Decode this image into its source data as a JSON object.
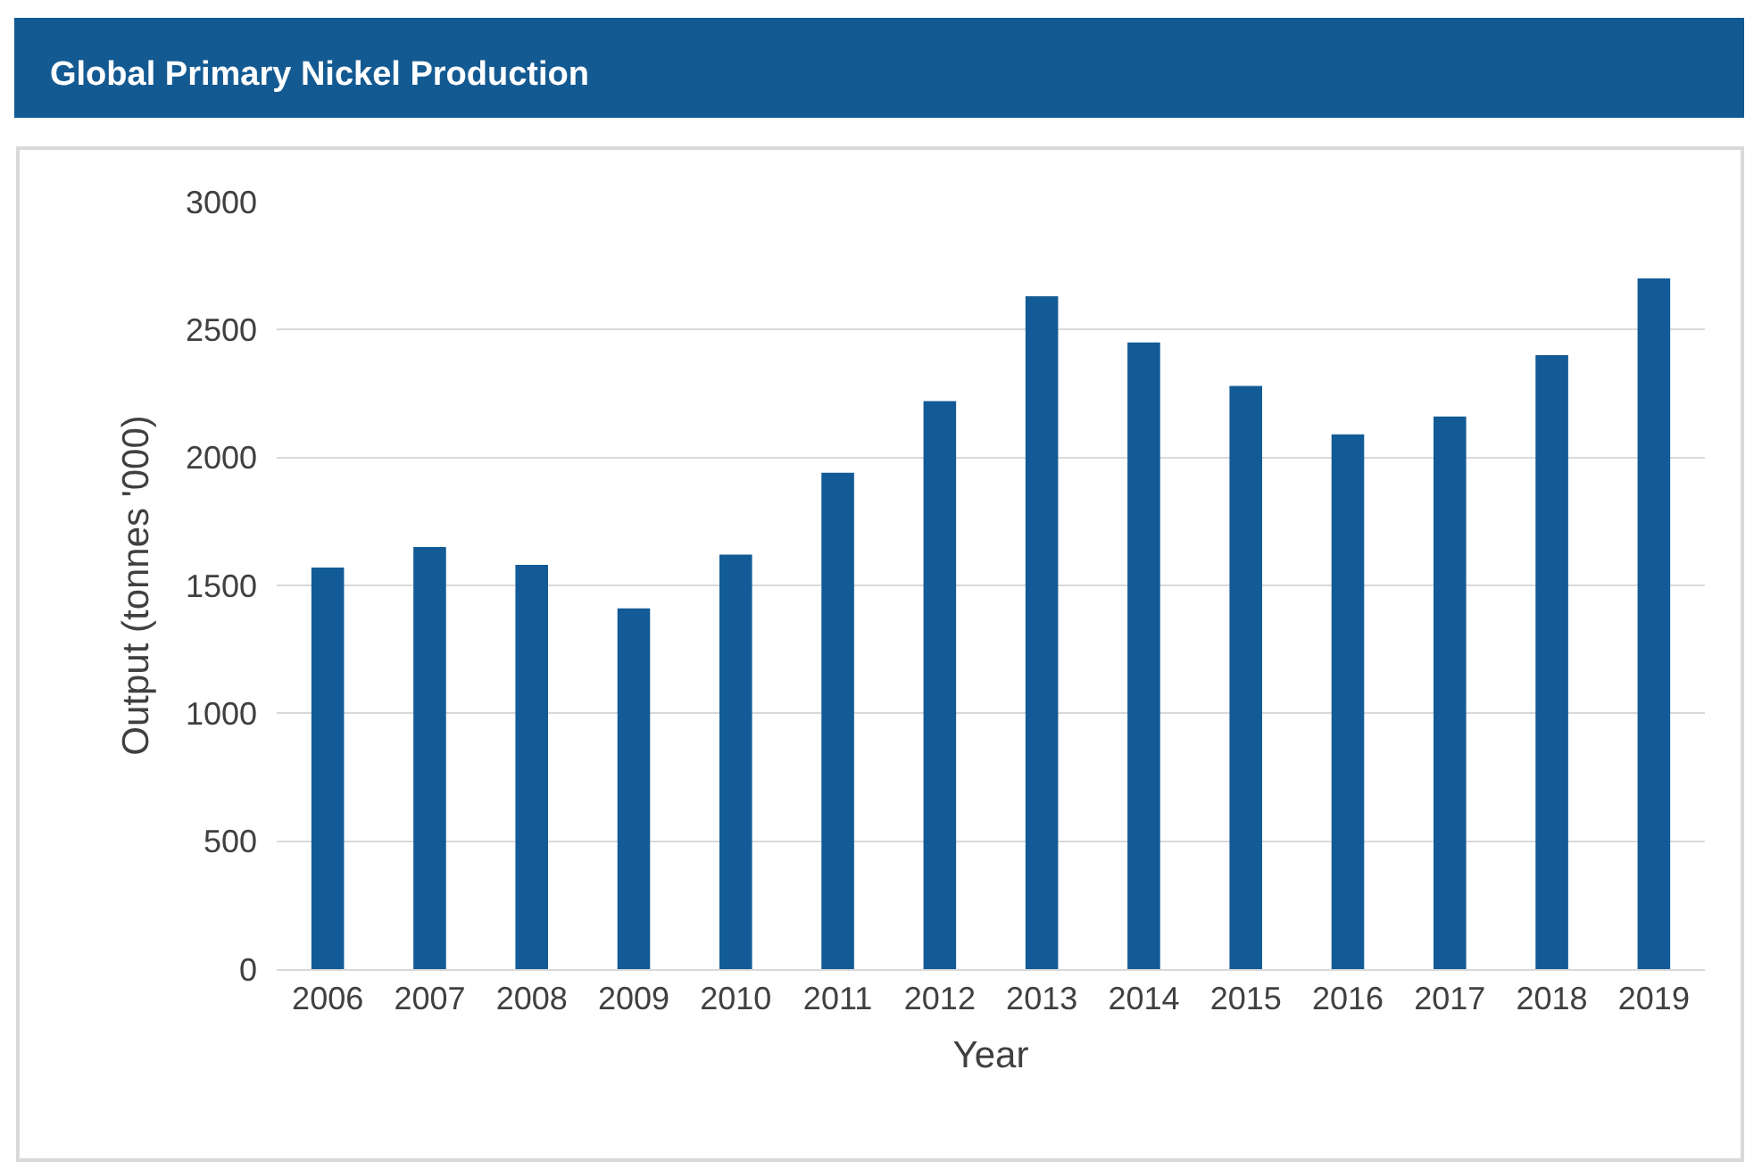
{
  "chart_data": {
    "type": "bar",
    "title": "Global Primary Nickel Production",
    "xlabel": "Year",
    "ylabel": "Output (tonnes '000)",
    "categories": [
      "2006",
      "2007",
      "2008",
      "2009",
      "2010",
      "2011",
      "2012",
      "2013",
      "2014",
      "2015",
      "2016",
      "2017",
      "2018",
      "2019"
    ],
    "values": [
      1570,
      1650,
      1580,
      1410,
      1620,
      1940,
      2220,
      2630,
      2450,
      2280,
      2090,
      2160,
      2400,
      2700
    ],
    "color": "#125b96",
    "ylim": [
      0,
      3000
    ],
    "yticks": [
      0,
      500,
      1000,
      1500,
      2000,
      2500,
      3000
    ],
    "grid": "y"
  }
}
